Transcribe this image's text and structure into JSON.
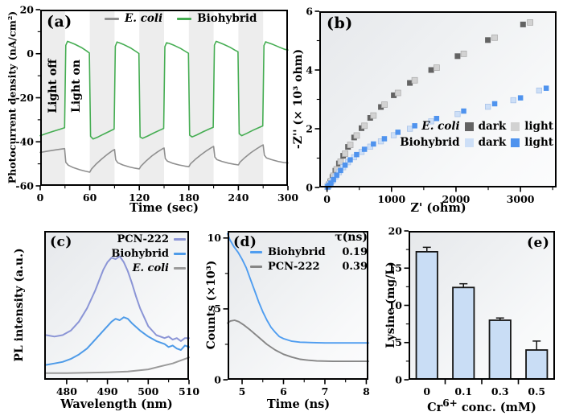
{
  "chart_data": [
    {
      "panel": "a",
      "type": "line",
      "panel_label": "(a)",
      "xlabel": "Time (sec)",
      "ylabel": "Photocurrent density (nA/cm²)",
      "xlim": [
        0,
        300
      ],
      "ylim": [
        -60,
        20
      ],
      "xticks": [
        0,
        60,
        120,
        180,
        240,
        300
      ],
      "xticks_minor": [
        30,
        90,
        150,
        210,
        270
      ],
      "yticks": [
        20,
        0,
        -20,
        -40,
        -60
      ],
      "yticks_minor": [
        10,
        -10,
        -30,
        -50
      ],
      "band_color": "#ededed",
      "light_off_bands": [
        [
          0,
          30
        ],
        [
          60,
          90
        ],
        [
          120,
          150
        ],
        [
          180,
          210
        ],
        [
          240,
          270
        ]
      ],
      "annotations": [
        {
          "text": "Light off"
        },
        {
          "text": "Light on"
        }
      ],
      "legend": [
        {
          "label": "E. coli",
          "color": "#8f8f8f"
        },
        {
          "label": "Biohybrid",
          "color": "#45ad52"
        }
      ],
      "series": [
        {
          "name": "E. coli",
          "color": "#8f8f8f",
          "x": [
            0,
            10,
            20,
            29.5,
            31,
            34,
            40,
            48,
            55,
            60,
            62,
            68,
            75,
            82,
            88,
            90,
            91.5,
            94,
            100,
            108,
            115,
            120,
            122,
            128,
            135,
            142,
            148,
            150,
            151.5,
            154,
            160,
            168,
            175,
            180,
            182,
            188,
            195,
            202,
            208,
            210,
            211.5,
            214,
            220,
            228,
            235,
            240,
            242,
            248,
            255,
            262,
            268,
            270,
            271.5,
            274,
            280,
            288,
            295,
            300
          ],
          "y": [
            -44.8,
            -44.2,
            -43.6,
            -43.1,
            -49.3,
            -50.6,
            -51.7,
            -52.7,
            -53.4,
            -53.8,
            -52.4,
            -50.0,
            -47.6,
            -45.5,
            -43.9,
            -43.5,
            -48.2,
            -49.5,
            -50.5,
            -51.4,
            -52.0,
            -52.3,
            -51.0,
            -48.8,
            -46.5,
            -44.6,
            -43.2,
            -42.8,
            -47.6,
            -48.8,
            -49.7,
            -50.5,
            -51.0,
            -51.3,
            -50.0,
            -47.9,
            -45.8,
            -43.9,
            -42.5,
            -42.1,
            -46.9,
            -48.1,
            -48.9,
            -49.7,
            -50.2,
            -50.5,
            -49.2,
            -47.1,
            -45.0,
            -43.2,
            -41.8,
            -41.4,
            -46.1,
            -47.3,
            -48.1,
            -48.9,
            -49.4,
            -49.6
          ]
        },
        {
          "name": "Biohybrid",
          "color": "#45ad52",
          "x": [
            0,
            8,
            16,
            24,
            29.5,
            31,
            33,
            36,
            42,
            50,
            56,
            59.5,
            61,
            64,
            70,
            78,
            85,
            89.5,
            91,
            93,
            96,
            102,
            110,
            116,
            119.5,
            121,
            124,
            130,
            138,
            145,
            149.5,
            151,
            153,
            156,
            162,
            170,
            176,
            179.5,
            181,
            184,
            190,
            198,
            205,
            209.5,
            211,
            213,
            216,
            222,
            230,
            236,
            239.5,
            241,
            244,
            250,
            258,
            265,
            269.5,
            271,
            273,
            276,
            282,
            290,
            296,
            300
          ],
          "y": [
            -37.2,
            -36.2,
            -35.2,
            -34.3,
            -33.6,
            3.8,
            5.6,
            5.2,
            4.3,
            2.8,
            1.3,
            0.3,
            -37.5,
            -38.7,
            -37.8,
            -36.3,
            -35.0,
            -34.2,
            3.4,
            5.3,
            4.9,
            4.0,
            2.5,
            1.0,
            0.1,
            -37.8,
            -38.4,
            -37.4,
            -35.9,
            -34.7,
            -33.9,
            3.2,
            5.0,
            4.7,
            3.8,
            2.4,
            1.0,
            0.2,
            -37.0,
            -37.8,
            -36.8,
            -35.3,
            -34.1,
            -33.4,
            3.9,
            5.6,
            5.2,
            4.3,
            2.9,
            1.6,
            0.9,
            -36.3,
            -37.2,
            -36.2,
            -34.7,
            -33.5,
            -32.8,
            3.7,
            5.4,
            5.0,
            4.2,
            2.9,
            2.0,
            1.7
          ]
        }
      ]
    },
    {
      "panel": "b",
      "type": "scatter",
      "panel_label": "(b)",
      "xlabel": "Z' (ohm)",
      "ylabel": "-Z'' (× 10³ ohm)",
      "xlim": [
        -120,
        3560
      ],
      "ylim": [
        0,
        6
      ],
      "xticks": [
        0,
        1000,
        2000,
        3000
      ],
      "xticks_minor": [
        500,
        1500,
        2500,
        3500
      ],
      "yticks": [
        0,
        2,
        4,
        6
      ],
      "yticks_minor": [
        1,
        3,
        5
      ],
      "legend": [
        {
          "group": "E. coli",
          "entries": [
            {
              "label": "dark",
              "color": "#636363"
            },
            {
              "label": "light",
              "color": "#d2d2d2"
            }
          ]
        },
        {
          "group": "Biohybrid",
          "entries": [
            {
              "label": "dark",
              "color": "#cddff7"
            },
            {
              "label": "light",
              "color": "#4f93ee"
            }
          ]
        }
      ],
      "series": [
        {
          "name": "E. coli dark",
          "color": "#636363",
          "size": 7,
          "x": [
            5,
            22,
            48,
            85,
            130,
            185,
            250,
            325,
            420,
            535,
            670,
            835,
            1035,
            1285,
            1615,
            2025,
            2495,
            3040
          ],
          "y": [
            0.02,
            0.08,
            0.19,
            0.36,
            0.57,
            0.82,
            1.08,
            1.38,
            1.7,
            2.02,
            2.37,
            2.74,
            3.14,
            3.56,
            4.0,
            4.47,
            5.02,
            5.55
          ]
        },
        {
          "name": "E. coli light",
          "color": "#d2d2d2",
          "stroke": "#aeaeae",
          "size": 7,
          "x": [
            10,
            30,
            60,
            100,
            150,
            210,
            280,
            360,
            460,
            580,
            720,
            890,
            1100,
            1360,
            1700,
            2120,
            2600,
            3150
          ],
          "y": [
            0.03,
            0.1,
            0.22,
            0.4,
            0.62,
            0.88,
            1.15,
            1.45,
            1.77,
            2.1,
            2.45,
            2.82,
            3.22,
            3.65,
            4.08,
            4.55,
            5.1,
            5.62
          ]
        },
        {
          "name": "Biohybrid dark",
          "color": "#cddff7",
          "stroke": "#aac4e8",
          "size": 6.5,
          "x": [
            5,
            22,
            48,
            85,
            130,
            185,
            250,
            325,
            420,
            535,
            670,
            835,
            1035,
            1285,
            1615,
            2025,
            2495,
            2890,
            3290
          ],
          "y": [
            0.015,
            0.055,
            0.12,
            0.23,
            0.37,
            0.52,
            0.69,
            0.86,
            1.03,
            1.21,
            1.39,
            1.57,
            1.78,
            2.0,
            2.25,
            2.5,
            2.75,
            2.97,
            3.3
          ]
        },
        {
          "name": "Biohybrid light",
          "color": "#4f93ee",
          "size": 6.5,
          "x": [
            10,
            30,
            60,
            100,
            150,
            210,
            280,
            360,
            460,
            580,
            720,
            890,
            1100,
            1360,
            1700,
            2120,
            2600,
            3000,
            3400
          ],
          "y": [
            0.02,
            0.07,
            0.15,
            0.27,
            0.42,
            0.58,
            0.76,
            0.94,
            1.12,
            1.3,
            1.48,
            1.66,
            1.88,
            2.1,
            2.35,
            2.6,
            2.85,
            3.05,
            3.38
          ]
        }
      ]
    },
    {
      "panel": "c",
      "type": "line",
      "panel_label": "(c)",
      "xlabel": "Wavelength (nm)",
      "ylabel": "PL intensity (a.u.)",
      "xlim": [
        474.5,
        510
      ],
      "ylim": [
        0,
        1
      ],
      "xticks": [
        480,
        490,
        500,
        510
      ],
      "xticks_minor": [
        485,
        495,
        505
      ],
      "yticks": [],
      "yticks_minor": [],
      "legend": [
        {
          "label": "PCN-222",
          "color": "#8b95d6"
        },
        {
          "label": "Biohybrid",
          "color": "#4e9be8"
        },
        {
          "label": "E. coli",
          "color": "#9a9a9a"
        }
      ],
      "series": [
        {
          "name": "PCN-222",
          "color": "#8b95d6",
          "width": 2,
          "x": [
            475,
            477,
            479,
            481,
            483,
            485,
            487,
            489,
            490,
            491,
            492,
            493,
            494,
            495,
            496,
            497,
            498,
            500,
            502,
            504,
            505,
            506,
            507,
            508,
            509,
            510
          ],
          "y": [
            0.3,
            0.29,
            0.3,
            0.33,
            0.39,
            0.48,
            0.6,
            0.74,
            0.79,
            0.82,
            0.81,
            0.83,
            0.79,
            0.73,
            0.65,
            0.56,
            0.48,
            0.36,
            0.3,
            0.28,
            0.29,
            0.27,
            0.28,
            0.26,
            0.28,
            0.28
          ]
        },
        {
          "name": "Biohybrid",
          "color": "#4e9be8",
          "width": 2,
          "x": [
            475,
            477,
            479,
            481,
            483,
            485,
            487,
            489,
            491,
            492,
            493,
            494,
            495,
            496,
            498,
            500,
            502,
            504,
            505,
            506,
            507,
            508,
            509,
            510
          ],
          "y": [
            0.1,
            0.11,
            0.12,
            0.14,
            0.17,
            0.21,
            0.27,
            0.33,
            0.39,
            0.41,
            0.4,
            0.42,
            0.41,
            0.38,
            0.33,
            0.29,
            0.26,
            0.24,
            0.22,
            0.23,
            0.21,
            0.2,
            0.23,
            0.22
          ]
        },
        {
          "name": "E. coli",
          "color": "#9a9a9a",
          "width": 2,
          "x": [
            475,
            480,
            485,
            490,
            495,
            500,
            503,
            506,
            508,
            510
          ],
          "y": [
            0.045,
            0.045,
            0.047,
            0.05,
            0.055,
            0.07,
            0.09,
            0.11,
            0.13,
            0.15
          ]
        }
      ]
    },
    {
      "panel": "d",
      "type": "line",
      "panel_label": "(d)",
      "xlabel": "Time (ns)",
      "ylabel": "Counts (×10³)",
      "xlim": [
        4.65,
        8.05
      ],
      "ylim": [
        0,
        10.5
      ],
      "xticks": [
        5,
        6,
        7,
        8
      ],
      "xticks_minor": [
        5.5,
        6.5,
        7.5
      ],
      "yticks": [
        0,
        5,
        10
      ],
      "yticks_minor": [
        2.5,
        7.5
      ],
      "legend_header": "τ(ns)",
      "legend": [
        {
          "label": "Biohybrid",
          "tau": "0.19",
          "color": "#4f9df0"
        },
        {
          "label": "PCN-222",
          "tau": "0.39",
          "color": "#868686"
        }
      ],
      "series": [
        {
          "name": "PCN-222",
          "color": "#868686",
          "width": 1.9,
          "x": [
            4.65,
            4.72,
            4.82,
            4.92,
            5.05,
            5.2,
            5.4,
            5.6,
            5.8,
            6.0,
            6.2,
            6.4,
            6.6,
            6.8,
            7.2,
            7.6,
            8.05
          ],
          "y": [
            4.0,
            4.15,
            4.2,
            4.1,
            3.85,
            3.5,
            3.0,
            2.5,
            2.1,
            1.8,
            1.6,
            1.45,
            1.38,
            1.33,
            1.3,
            1.3,
            1.3
          ]
        },
        {
          "name": "Biohybrid",
          "color": "#4f9df0",
          "width": 1.9,
          "x": [
            4.65,
            4.7,
            4.8,
            4.9,
            5.0,
            5.1,
            5.2,
            5.3,
            5.4,
            5.5,
            5.6,
            5.7,
            5.8,
            5.9,
            6.0,
            6.2,
            6.4,
            6.7,
            7.0,
            7.5,
            8.05
          ],
          "y": [
            10.3,
            9.9,
            9.4,
            9.0,
            8.5,
            7.9,
            7.1,
            6.3,
            5.5,
            4.8,
            4.2,
            3.7,
            3.35,
            3.05,
            2.9,
            2.72,
            2.65,
            2.62,
            2.6,
            2.6,
            2.6
          ]
        }
      ]
    },
    {
      "panel": "e",
      "type": "bar",
      "panel_label": "(e)",
      "xlabel_prefix": "Cr",
      "xlabel_sup": "6+",
      "xlabel_suffix": " conc. (mM)",
      "ylabel": "Lysine (mg/L)",
      "ylim": [
        0,
        20
      ],
      "yticks": [
        0,
        5,
        10,
        15,
        20
      ],
      "yticks_minor": [
        2.5,
        7.5,
        12.5,
        17.5
      ],
      "categories": [
        "0",
        "0.1",
        "0.3",
        "0.5"
      ],
      "values": [
        17.2,
        12.4,
        8.0,
        4.0
      ],
      "errors": [
        0.6,
        0.5,
        0.3,
        1.2
      ],
      "bar_color": "#c9ddf5",
      "bar_stroke": "#141414"
    }
  ]
}
